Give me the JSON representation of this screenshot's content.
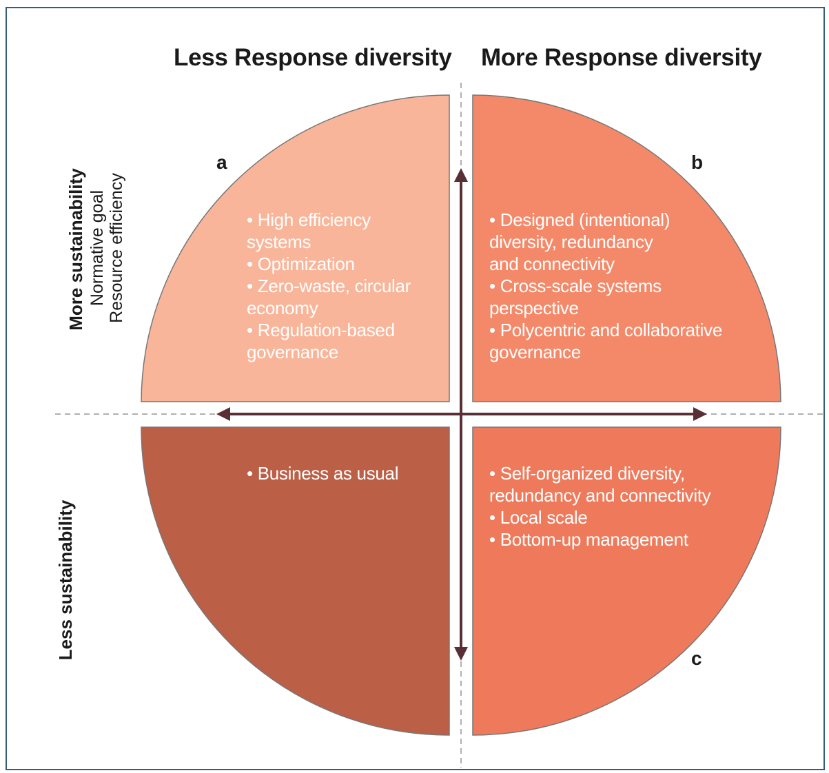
{
  "header": {
    "left_title": "Less Response diversity",
    "right_title": "More Response diversity"
  },
  "side": {
    "more_sustainability": "More sustainability",
    "normative_goal": "Normative goal",
    "resource_efficiency": "Resource efficiency",
    "less_sustainability": "Less sustainability"
  },
  "quadrants": {
    "a": {
      "label": "a",
      "color": "#f9b59a",
      "items": [
        [
          "High efficiency",
          "systems"
        ],
        [
          "Optimization"
        ],
        [
          "Zero-waste, circular",
          "economy"
        ],
        [
          "Regulation-based",
          "governance"
        ]
      ]
    },
    "b": {
      "label": "b",
      "color": "#f4896a",
      "items": [
        [
          "Designed (intentional)",
          "diversity, redundancy",
          "and connectivity"
        ],
        [
          "Cross-scale systems",
          "perspective"
        ],
        [
          "Polycentric and collaborative",
          "governance"
        ]
      ]
    },
    "d": {
      "color": "#bb5f46",
      "items": [
        [
          "Business as usual"
        ]
      ]
    },
    "c": {
      "label": "c",
      "color": "#ef7a5b",
      "items": [
        [
          "Self-organized diversity,",
          "redundancy and connectivity"
        ],
        [
          "Local scale"
        ],
        [
          "Bottom-up management"
        ]
      ]
    }
  },
  "colors": {
    "arrow": "#5a2e35",
    "border": "#2f5f7a",
    "dash": "#b0b0b0",
    "outline": "#777777"
  }
}
